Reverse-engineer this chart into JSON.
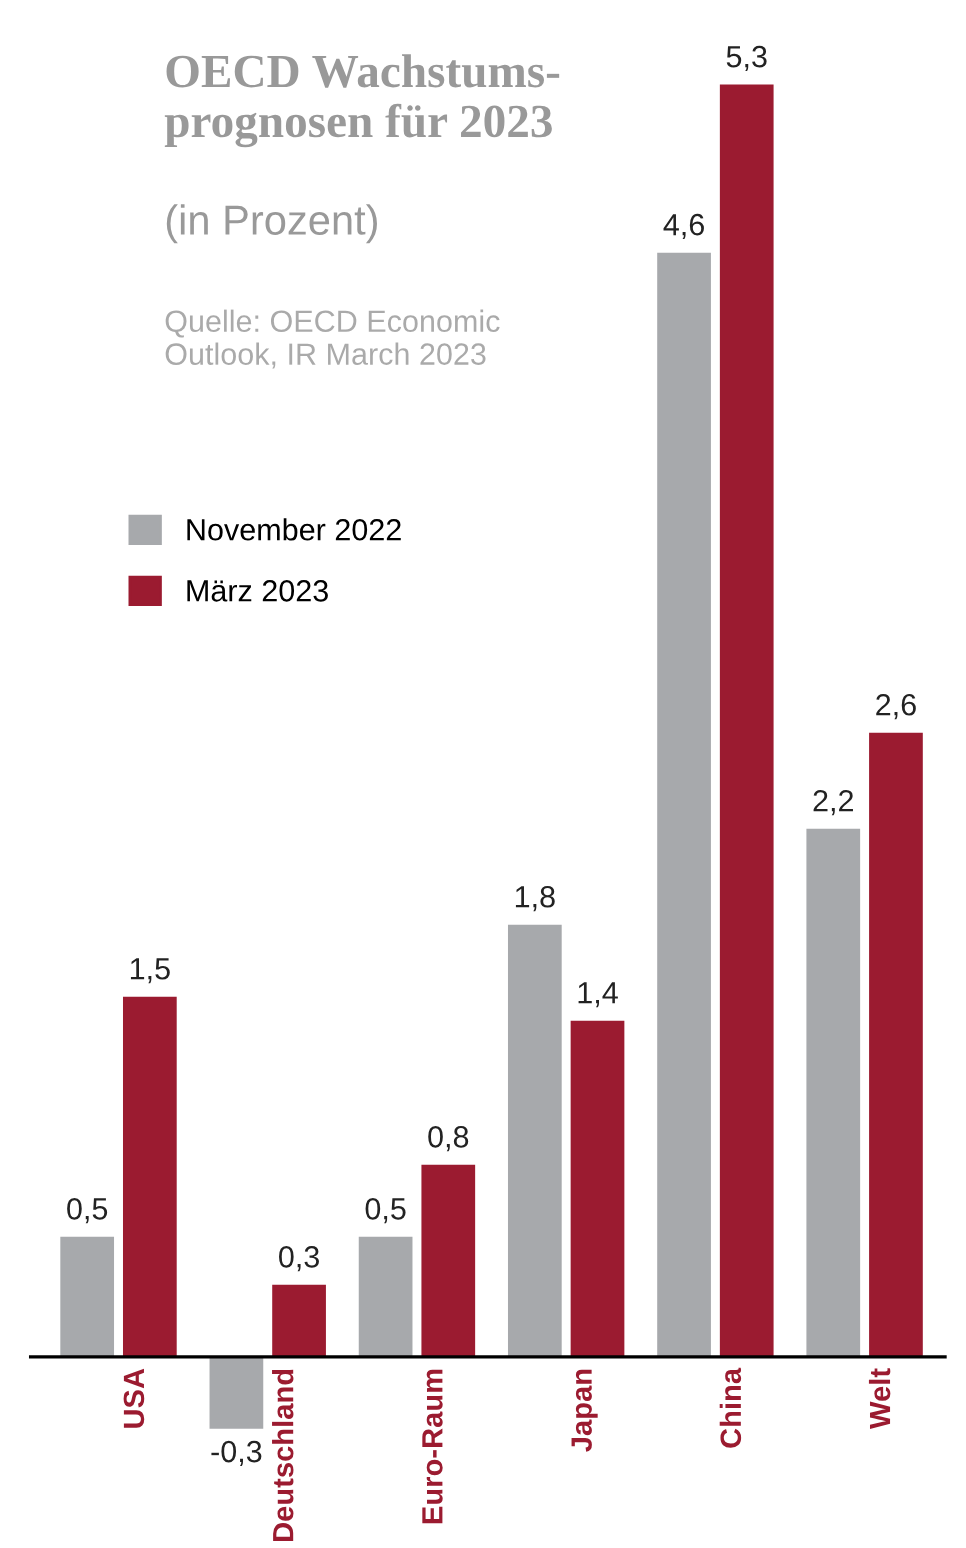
{
  "chart_data": {
    "type": "bar",
    "title": "OECD Wachstums-\nprognosen für 2023",
    "subtitle": "(in Prozent)",
    "annotations": [
      "Quelle: OECD Economic\nOutlook, IR March 2023"
    ],
    "categories": [
      "USA",
      "Deutschland",
      "Euro-Raum",
      "Japan",
      "China",
      "Welt"
    ],
    "series": [
      {
        "name": "November 2022",
        "color": "#a7a9ac",
        "values": [
          0.5,
          -0.3,
          0.5,
          1.8,
          4.6,
          2.2
        ],
        "value_labels": [
          "0,5",
          "-0,3",
          "0,5",
          "1,8",
          "4,6",
          "2,2"
        ]
      },
      {
        "name": "März 2023",
        "color": "#9b1b30",
        "values": [
          1.5,
          0.3,
          0.8,
          1.4,
          5.3,
          2.6
        ],
        "value_labels": [
          "1,5",
          "0,3",
          "0,8",
          "1,4",
          "5,3",
          "2,6"
        ]
      }
    ],
    "legend": "left"
  }
}
